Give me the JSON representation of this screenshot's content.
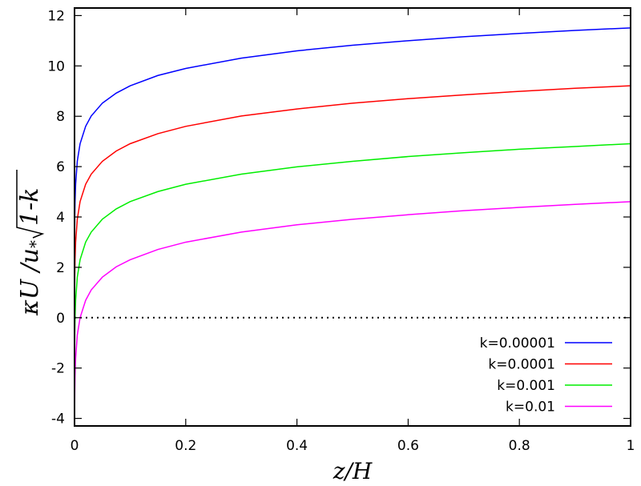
{
  "chart_data": {
    "type": "line",
    "xlabel": "z/H",
    "ylabel": "κU/u*√1-k",
    "ylabel_parts": {
      "main": "κU /u",
      "sub": "*",
      "root": "1-k"
    },
    "xlim": [
      0,
      1
    ],
    "ylim": [
      -4.3,
      12.3
    ],
    "xticks": [
      "0",
      "0.2",
      "0.4",
      "0.6",
      "0.8",
      "1"
    ],
    "xtick_values": [
      0,
      0.2,
      0.4,
      0.6,
      0.8,
      1
    ],
    "yticks": [
      "-4",
      "-2",
      "0",
      "2",
      "4",
      "6",
      "8",
      "10",
      "12"
    ],
    "ytick_values": [
      -4,
      -2,
      0,
      2,
      4,
      6,
      8,
      10,
      12
    ],
    "grid": false,
    "legend_position": "bottom-right",
    "zero_line": {
      "y": 0,
      "style": "dotted",
      "color": "#000000"
    },
    "x": [
      2e-05,
      5e-05,
      0.0001,
      0.0002,
      0.0005,
      0.001,
      0.002,
      0.005,
      0.01,
      0.02,
      0.03,
      0.05,
      0.075,
      0.1,
      0.15,
      0.2,
      0.3,
      0.4,
      0.5,
      0.6,
      0.7,
      0.8,
      0.9,
      1.0
    ],
    "series": [
      {
        "name": "k=0.00001",
        "color": "#0000ff",
        "values": [
          0.69,
          1.61,
          2.3,
          3.0,
          3.91,
          4.61,
          5.3,
          6.22,
          6.91,
          7.6,
          8.01,
          8.52,
          8.92,
          9.21,
          9.62,
          9.9,
          10.31,
          10.6,
          10.82,
          11.0,
          11.16,
          11.29,
          11.41,
          11.51
        ]
      },
      {
        "name": "k=0.0001",
        "color": "#ff0000",
        "values": [
          -1.61,
          -0.69,
          0,
          0.69,
          1.61,
          2.3,
          3.0,
          3.91,
          4.61,
          5.3,
          5.7,
          6.21,
          6.62,
          6.91,
          7.31,
          7.6,
          8.01,
          8.29,
          8.52,
          8.7,
          8.85,
          8.99,
          9.11,
          9.21
        ]
      },
      {
        "name": "k=0.001",
        "color": "#00ee00",
        "values": [
          -3.91,
          -3.0,
          -2.3,
          -1.61,
          -0.69,
          0,
          0.69,
          1.61,
          2.3,
          3.0,
          3.4,
          3.91,
          4.32,
          4.61,
          5.01,
          5.3,
          5.7,
          5.99,
          6.21,
          6.4,
          6.55,
          6.69,
          6.8,
          6.91
        ]
      },
      {
        "name": "k=0.01",
        "color": "#ff00ff",
        "values": [
          -6.22,
          -5.3,
          -4.61,
          -3.91,
          -3.0,
          -2.3,
          -1.61,
          -0.69,
          0,
          0.69,
          1.1,
          1.61,
          2.02,
          2.3,
          2.71,
          3.0,
          3.4,
          3.69,
          3.91,
          4.09,
          4.25,
          4.38,
          4.5,
          4.61
        ]
      }
    ]
  }
}
